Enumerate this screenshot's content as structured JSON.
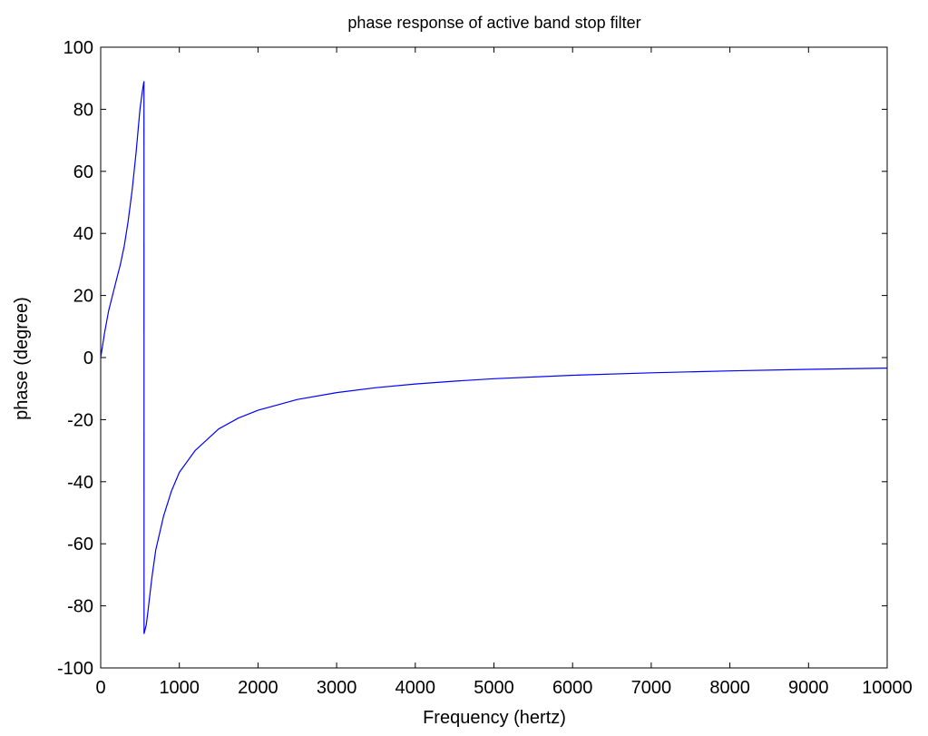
{
  "chart_data": {
    "type": "line",
    "title": "phase response of active band stop filter",
    "xlabel": "Frequency (hertz)",
    "ylabel": "phase (degree)",
    "xlim": [
      0,
      10000
    ],
    "ylim": [
      -100,
      100
    ],
    "xticks": [
      0,
      1000,
      2000,
      3000,
      4000,
      5000,
      6000,
      7000,
      8000,
      9000,
      10000
    ],
    "yticks": [
      -100,
      -80,
      -60,
      -40,
      -20,
      0,
      20,
      40,
      60,
      80,
      100
    ],
    "grid": false,
    "legend": "none",
    "colors": {
      "line": "#0000ff",
      "axes": "#000000",
      "background": "#ffffff"
    },
    "series": [
      {
        "segments": [
          {
            "x": [
              0,
              50,
              100,
              150,
              200,
              250,
              300,
              350,
              400,
              450,
              500,
              530,
              550
            ],
            "y": [
              0,
              8,
              15,
              20,
              25,
              30,
              36,
              44,
              54,
              66,
              80,
              86,
              89
            ]
          },
          {
            "x": [
              550,
              551
            ],
            "y": [
              89,
              -89
            ]
          },
          {
            "x": [
              551,
              580,
              600,
              650,
              700,
              800,
              900,
              1000,
              1200,
              1500,
              1750,
              2000,
              2500,
              3000,
              3500,
              4000,
              4500,
              5000,
              6000,
              7000,
              8000,
              9000,
              10000
            ],
            "y": [
              -89,
              -86,
              -82,
              -71,
              -62,
              -51,
              -43,
              -37,
              -30,
              -23,
              -19.5,
              -17,
              -13.5,
              -11.3,
              -9.7,
              -8.5,
              -7.6,
              -6.8,
              -5.7,
              -4.9,
              -4.3,
              -3.8,
              -3.4
            ]
          }
        ]
      }
    ]
  }
}
